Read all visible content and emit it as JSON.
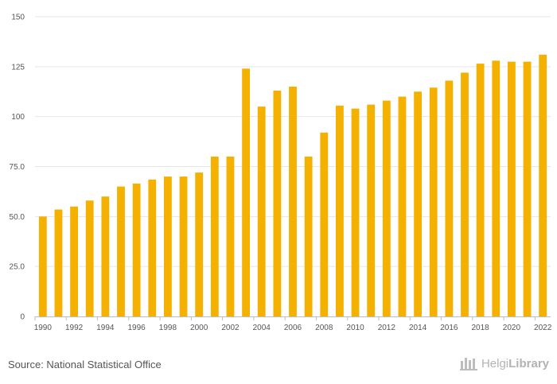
{
  "chart_data": {
    "type": "bar",
    "title": "",
    "xlabel": "",
    "ylabel": "",
    "categories": [
      "1990",
      "1991",
      "1992",
      "1993",
      "1994",
      "1995",
      "1996",
      "1997",
      "1998",
      "1999",
      "2000",
      "2001",
      "2002",
      "2003",
      "2004",
      "2005",
      "2006",
      "2007",
      "2008",
      "2009",
      "2010",
      "2011",
      "2012",
      "2013",
      "2014",
      "2015",
      "2016",
      "2017",
      "2018",
      "2019",
      "2020",
      "2021",
      "2022"
    ],
    "x_tick_labels": [
      "1990",
      "1992",
      "1994",
      "1996",
      "1998",
      "2000",
      "2002",
      "2004",
      "2006",
      "2008",
      "2010",
      "2012",
      "2014",
      "2016",
      "2018",
      "2020",
      "2022"
    ],
    "values": [
      50,
      53.5,
      55,
      58,
      60,
      65,
      66.5,
      68.5,
      70,
      70,
      72,
      80,
      80,
      124,
      105,
      113,
      115,
      80,
      92,
      105.5,
      104,
      106,
      108,
      110,
      112.5,
      114.5,
      118,
      122,
      126.5,
      128,
      127.5,
      127.5,
      131
    ],
    "ylim": [
      0,
      150
    ],
    "y_ticks": [
      {
        "value": 0,
        "label": "0"
      },
      {
        "value": 25,
        "label": "25.0"
      },
      {
        "value": 50,
        "label": "50.0"
      },
      {
        "value": 75,
        "label": "75.0"
      },
      {
        "value": 100,
        "label": "100"
      },
      {
        "value": 125,
        "label": "125"
      },
      {
        "value": 150,
        "label": "150"
      }
    ],
    "grid": true,
    "legend": "none",
    "bar_color": "#f5b100"
  },
  "footer": {
    "source": "Source: National Statistical Office",
    "logo_text_regular": "Helgi",
    "logo_text_bold": "Library",
    "logo_icon": "building-icon"
  }
}
